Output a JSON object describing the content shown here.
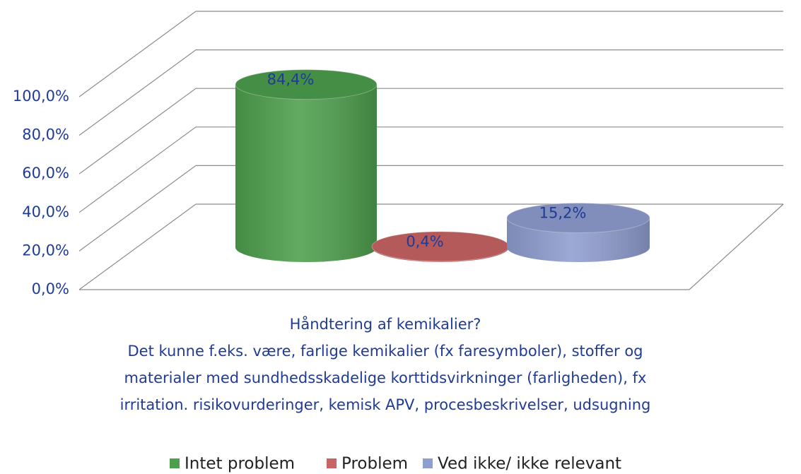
{
  "chart_data": {
    "type": "bar3d-cylinder",
    "xlabel": [
      "Håndtering af kemikalier?",
      "Det kunne f.eks. være, farlige kemikalier (fx faresymboler), stoffer og",
      "materialer med sundhedsskadelige korttidsvirkninger (farligheden), fx",
      "irritation. risikovurderinger, kemisk APV, procesbeskrivelser, udsugning"
    ],
    "series": [
      {
        "name": "Intet problem",
        "color": "#4d9e4d",
        "values": [
          84.4
        ],
        "value_labels": [
          "84,4%"
        ]
      },
      {
        "name": "Problem",
        "color": "#c96464",
        "values": [
          0.4
        ],
        "value_labels": [
          "0,4%"
        ]
      },
      {
        "name": "Ved ikke/ ikke relevant",
        "color": "#8f9dcf",
        "values": [
          15.2
        ],
        "value_labels": [
          "15,2%"
        ]
      }
    ],
    "ylim": [
      0,
      100
    ],
    "yticks": [
      {
        "value": 0,
        "label": "0,0%"
      },
      {
        "value": 20,
        "label": "20,0%"
      },
      {
        "value": 40,
        "label": "40,0%"
      },
      {
        "value": 60,
        "label": "60,0%"
      },
      {
        "value": 80,
        "label": "80,0%"
      },
      {
        "value": 100,
        "label": "100,0%"
      }
    ],
    "grid": true,
    "legend": "bottom"
  }
}
